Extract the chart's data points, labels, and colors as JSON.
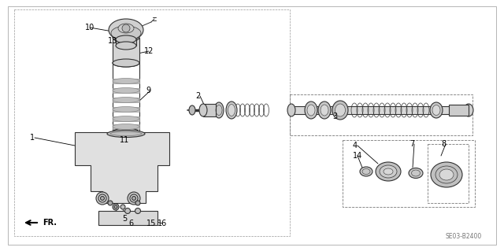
{
  "bg_color": "#ffffff",
  "line_color": "#333333",
  "diagram_code": "SE03-B2400",
  "gray_light": "#cccccc",
  "gray_mid": "#aaaaaa",
  "gray_dark": "#888888"
}
